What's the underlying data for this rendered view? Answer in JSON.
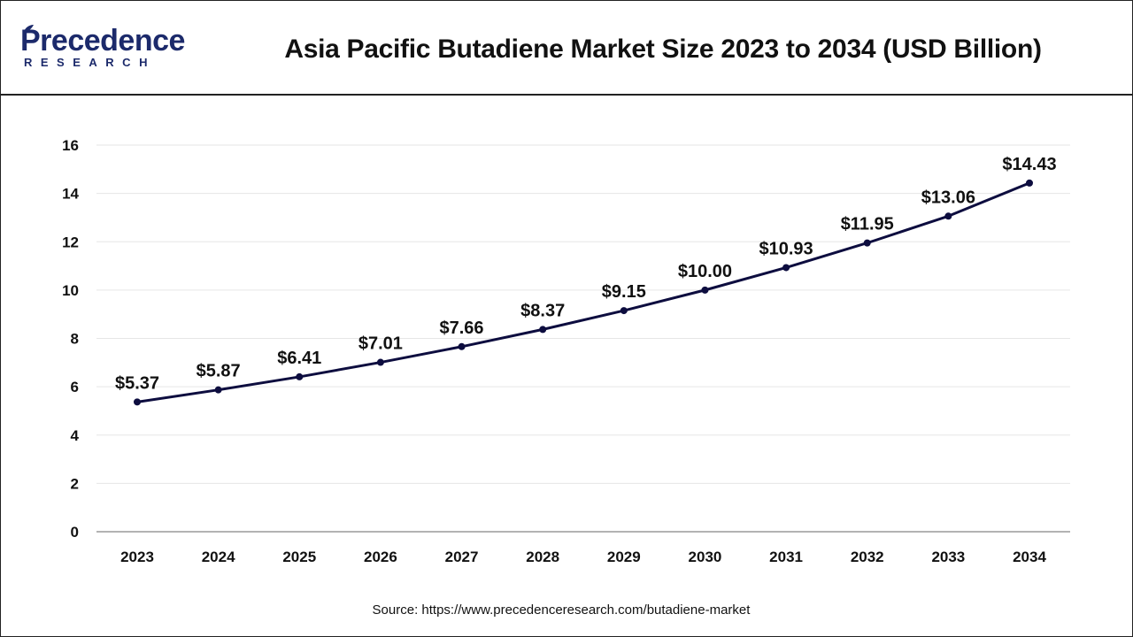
{
  "header": {
    "logo_main": "Precedence",
    "logo_sub": "RESEARCH",
    "title": "Asia Pacific Butadiene Market Size 2023 to 2034 (USD Billion)"
  },
  "footer": {
    "source": "Source: https://www.precedenceresearch.com/butadiene-market"
  },
  "colors": {
    "line": "#0d0d3f",
    "grid": "#e6e6e6",
    "brand": "#1c2a6b"
  },
  "chart_data": {
    "type": "line",
    "title": "Asia Pacific Butadiene Market Size 2023 to 2034 (USD Billion)",
    "categories": [
      "2023",
      "2024",
      "2025",
      "2026",
      "2027",
      "2028",
      "2029",
      "2030",
      "2031",
      "2032",
      "2033",
      "2034"
    ],
    "values": [
      5.37,
      5.87,
      6.41,
      7.01,
      7.66,
      8.37,
      9.15,
      10.0,
      10.93,
      11.95,
      13.06,
      14.43
    ],
    "data_labels": [
      "$5.37",
      "$5.87",
      "$6.41",
      "$7.01",
      "$7.66",
      "$8.37",
      "$9.15",
      "$10.00",
      "$10.93",
      "$11.95",
      "$13.06",
      "$14.43"
    ],
    "y_ticks": [
      "0",
      "2",
      "4",
      "6",
      "8",
      "10",
      "12",
      "14",
      "16"
    ],
    "ylim": [
      0,
      16
    ],
    "grid": true,
    "legend": "none",
    "xlabel": "",
    "ylabel": ""
  }
}
